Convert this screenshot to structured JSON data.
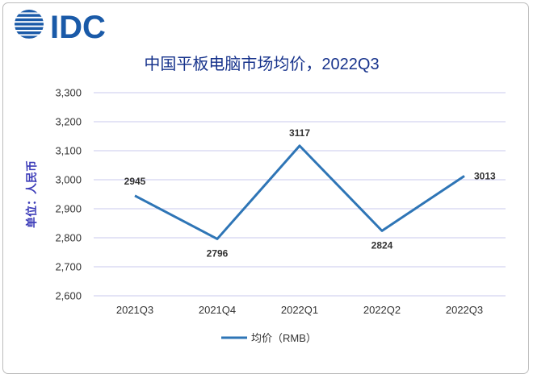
{
  "logo_text": "IDC",
  "colors": {
    "brand": "#1a5aa8",
    "line": "#2e75b6",
    "grid": "#c9c9ee",
    "title": "#17338c",
    "text": "#333333"
  },
  "chart_data": {
    "type": "line",
    "title": "中国平板电脑市场均价，2022Q3",
    "ylabel": "单位：人民币",
    "xlabel": "",
    "categories": [
      "2021Q3",
      "2021Q4",
      "2022Q1",
      "2022Q2",
      "2022Q3"
    ],
    "series": [
      {
        "name": "均价（RMB）",
        "values": [
          2945,
          2796,
          3117,
          2824,
          3013
        ]
      }
    ],
    "data_labels": [
      "2945",
      "2796",
      "3117",
      "2824",
      "3013"
    ],
    "yticks": [
      "2,600",
      "2,700",
      "2,800",
      "2,900",
      "3,000",
      "3,100",
      "3,200",
      "3,300"
    ],
    "ylim": [
      2600,
      3300
    ],
    "grid": true,
    "legend": "bottom"
  }
}
